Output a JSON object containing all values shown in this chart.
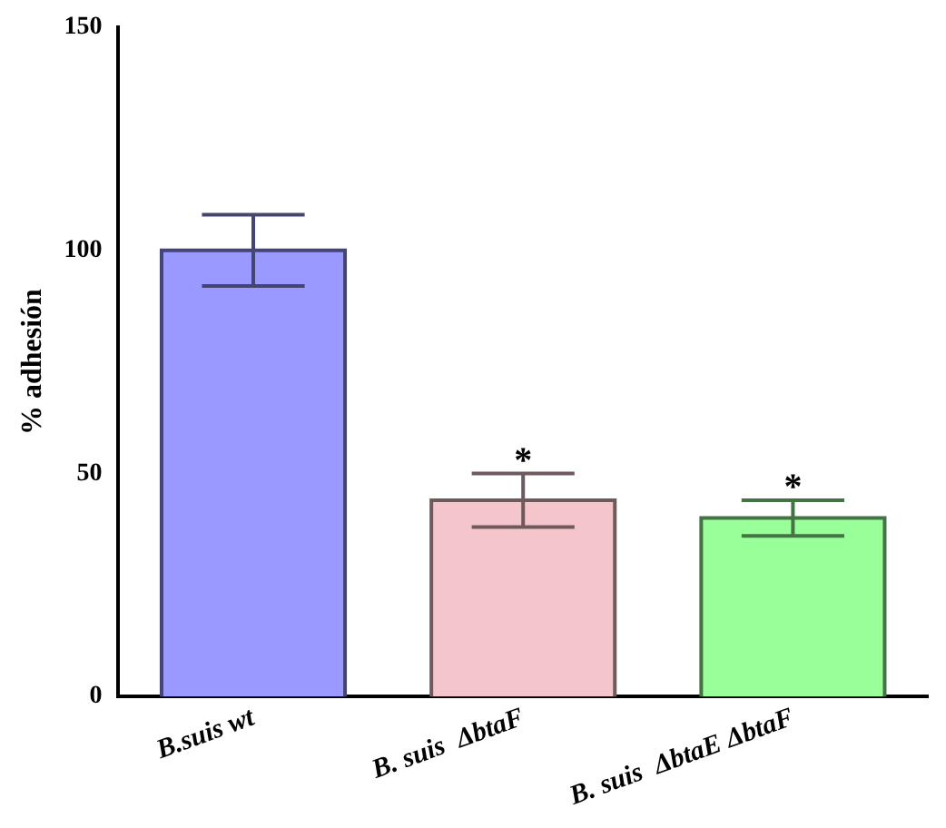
{
  "chart_data": {
    "type": "bar",
    "ylabel": "% adhesión",
    "categories": [
      "B.suis wt",
      "B. suis  ΔbtaF",
      "B. suis  ΔbtaE ΔbtaF"
    ],
    "values": [
      100,
      44,
      40
    ],
    "errors": [
      8,
      6,
      4
    ],
    "colors": [
      "#9999ff",
      "#f4c6cc",
      "#99ff99"
    ],
    "ylim": [
      0,
      150
    ],
    "yticks": [
      0,
      50,
      100,
      150
    ],
    "grid": false,
    "legend": false,
    "annotations": [
      "*",
      "*"
    ]
  }
}
